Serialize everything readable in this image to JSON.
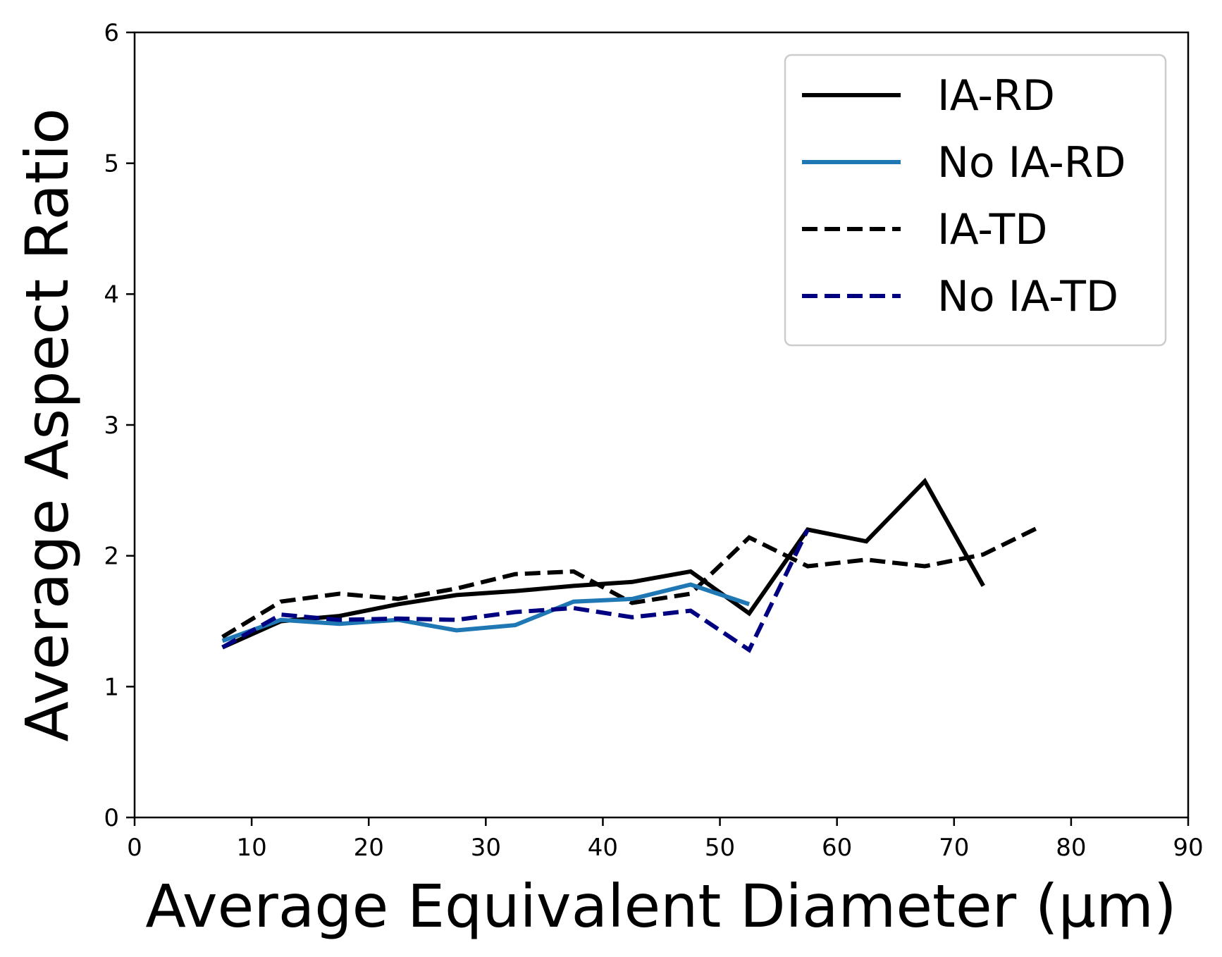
{
  "chart_data": {
    "type": "line",
    "title": "",
    "xlabel": "Average Equivalent Diameter (μm)",
    "ylabel": "Average Aspect Ratio",
    "xlim": [
      0,
      90
    ],
    "ylim": [
      0,
      6
    ],
    "xticks": [
      0,
      10,
      20,
      30,
      40,
      50,
      60,
      70,
      80,
      90
    ],
    "yticks": [
      0,
      1,
      2,
      3,
      4,
      5,
      6
    ],
    "grid": false,
    "legend_position": "top-right",
    "series": [
      {
        "name": "IA-RD",
        "color": "#000000",
        "dash": "solid",
        "x": [
          7.5,
          12.5,
          17.5,
          22.5,
          27.5,
          32.5,
          37.5,
          42.5,
          47.5,
          52.5,
          57.5,
          62.5,
          67.5,
          72.5
        ],
        "y": [
          1.3,
          1.5,
          1.54,
          1.63,
          1.7,
          1.73,
          1.77,
          1.8,
          1.88,
          1.56,
          2.2,
          2.11,
          2.57,
          1.77
        ]
      },
      {
        "name": "No IA-RD",
        "color": "#1f77b4",
        "dash": "solid",
        "x": [
          7.5,
          12.5,
          17.5,
          22.5,
          27.5,
          32.5,
          37.5,
          42.5,
          47.5,
          52.5
        ],
        "y": [
          1.35,
          1.51,
          1.48,
          1.51,
          1.43,
          1.47,
          1.65,
          1.67,
          1.78,
          1.63
        ]
      },
      {
        "name": "IA-TD",
        "color": "#000000",
        "dash": "dashed",
        "x": [
          7.5,
          12.5,
          17.5,
          22.5,
          27.5,
          32.5,
          37.5,
          42.5,
          47.5,
          52.5,
          57.5,
          62.5,
          67.5,
          72.5,
          77.5
        ],
        "y": [
          1.38,
          1.65,
          1.71,
          1.67,
          1.75,
          1.86,
          1.88,
          1.64,
          1.71,
          2.14,
          1.92,
          1.97,
          1.92,
          2.01,
          2.23
        ]
      },
      {
        "name": "No IA-TD",
        "color": "#000080",
        "dash": "dashed",
        "x": [
          7.5,
          12.5,
          17.5,
          22.5,
          27.5,
          32.5,
          37.5,
          42.5,
          47.5,
          52.5,
          57.5
        ],
        "y": [
          1.3,
          1.55,
          1.51,
          1.52,
          1.51,
          1.57,
          1.6,
          1.53,
          1.58,
          1.28,
          2.2
        ]
      }
    ]
  }
}
